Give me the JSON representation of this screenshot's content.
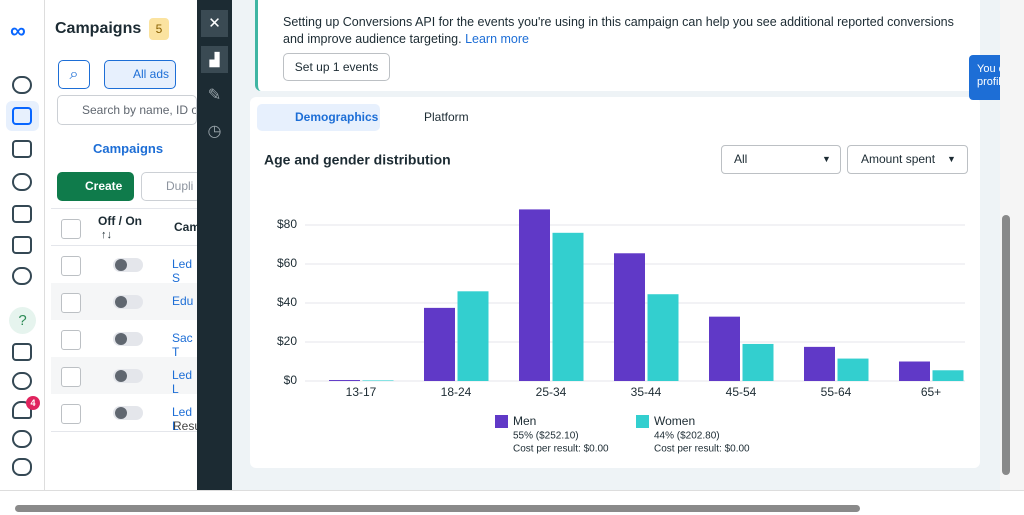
{
  "campaigns_panel": {
    "title": "Campaigns",
    "badge": "5",
    "all_ads": "All ads",
    "search_placeholder": "Search by name, ID or",
    "tab": "Campaigns",
    "create": "Create",
    "duplicate": "Dupli",
    "columns": [
      "Off / On",
      "Cam"
    ],
    "rows": [
      "Led S",
      "Edu",
      "Sac T",
      "Led L",
      "Led L"
    ],
    "footer": "Resu"
  },
  "nav": {
    "help": "?",
    "notification_count": "4"
  },
  "banner": {
    "text": "Setting up Conversions API for the events you're using in this campaign can help you see additional reported conversions and improve audience targeting.",
    "link": "Learn more",
    "button": "Set up 1 events"
  },
  "tabs": [
    "Demographics",
    "Platform"
  ],
  "filters": [
    "All",
    "Amount spent"
  ],
  "popup": [
    "You can m",
    "profile sw"
  ],
  "chart_data": {
    "type": "bar",
    "title": "Age and gender distribution",
    "categories": [
      "13-17",
      "18-24",
      "25-34",
      "35-44",
      "45-54",
      "55-64",
      "65+"
    ],
    "series": [
      {
        "name": "Men",
        "color": "#6039c7",
        "values": [
          0.5,
          37.5,
          88,
          65.5,
          33,
          17.5,
          10
        ],
        "share_label": "55% ($252.10)",
        "cost_label": "Cost per result: $0.00"
      },
      {
        "name": "Women",
        "color": "#33cfcf",
        "values": [
          0.3,
          46,
          76,
          44.5,
          19,
          11.5,
          5.5
        ],
        "share_label": "44% ($202.80)",
        "cost_label": "Cost per result: $0.00"
      }
    ],
    "ylim": [
      0,
      90
    ],
    "yticks": [
      {
        "value": 0,
        "label": "$0"
      },
      {
        "value": 20,
        "label": "$20"
      },
      {
        "value": 40,
        "label": "$40"
      },
      {
        "value": 60,
        "label": "$60"
      },
      {
        "value": 80,
        "label": "$80"
      }
    ],
    "grid": true
  }
}
